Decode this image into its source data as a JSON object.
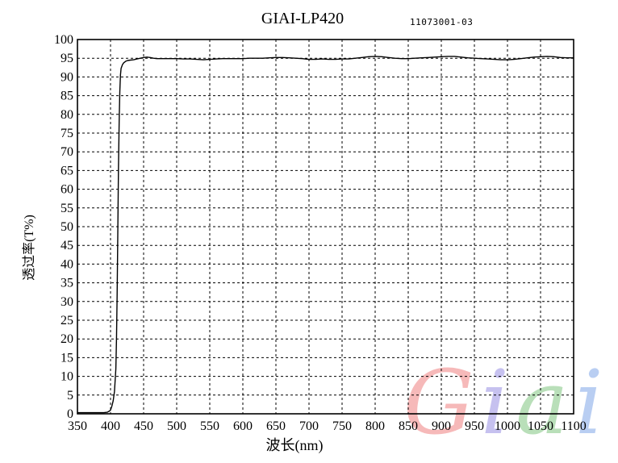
{
  "header": {
    "title": "GIAI-LP420",
    "serial": "11073001-03"
  },
  "axes": {
    "x_label": "波长(nm)",
    "y_label": "透过率(T%)"
  },
  "watermark": {
    "text": "Giai",
    "letters": [
      {
        "char": "G",
        "color": "#f5a8a8"
      },
      {
        "char": "i",
        "color": "#b8b2ec"
      },
      {
        "char": "a",
        "color": "#a8d8a8"
      },
      {
        "char": "i",
        "color": "#a8c2f0"
      }
    ]
  },
  "chart_data": {
    "type": "line",
    "title": "GIAI-LP420",
    "subtitle": "11073001-03",
    "xlabel": "波长(nm)",
    "ylabel": "透过率(T%)",
    "xlim": [
      350,
      1100
    ],
    "ylim": [
      0,
      100
    ],
    "x_ticks": [
      350,
      400,
      450,
      500,
      550,
      600,
      650,
      700,
      750,
      800,
      850,
      900,
      950,
      1000,
      1050,
      1100
    ],
    "y_ticks": [
      0,
      5,
      10,
      15,
      20,
      25,
      30,
      35,
      40,
      45,
      50,
      55,
      60,
      65,
      70,
      75,
      80,
      85,
      90,
      95,
      100
    ],
    "grid": "dashed",
    "legend": "none",
    "line_color": "#000000",
    "series": [
      {
        "name": "transmission",
        "points": [
          [
            350,
            0.3
          ],
          [
            355,
            0.3
          ],
          [
            360,
            0.3
          ],
          [
            365,
            0.3
          ],
          [
            370,
            0.3
          ],
          [
            375,
            0.3
          ],
          [
            380,
            0.3
          ],
          [
            385,
            0.3
          ],
          [
            390,
            0.3
          ],
          [
            395,
            0.4
          ],
          [
            398,
            0.7
          ],
          [
            400,
            1.0
          ],
          [
            402,
            2.0
          ],
          [
            404,
            3.5
          ],
          [
            406,
            6.0
          ],
          [
            408,
            12.0
          ],
          [
            409,
            20.0
          ],
          [
            410,
            32.0
          ],
          [
            411,
            48.0
          ],
          [
            412,
            65.0
          ],
          [
            413,
            78.0
          ],
          [
            414,
            86.0
          ],
          [
            415,
            90.5
          ],
          [
            416,
            92.3
          ],
          [
            418,
            93.3
          ],
          [
            420,
            93.8
          ],
          [
            423,
            94.2
          ],
          [
            426,
            94.4
          ],
          [
            430,
            94.5
          ],
          [
            435,
            94.6
          ],
          [
            440,
            94.8
          ],
          [
            445,
            95.0
          ],
          [
            450,
            95.2
          ],
          [
            455,
            95.3
          ],
          [
            460,
            95.2
          ],
          [
            465,
            95.0
          ],
          [
            470,
            94.9
          ],
          [
            480,
            94.9
          ],
          [
            490,
            94.9
          ],
          [
            500,
            94.9
          ],
          [
            510,
            94.8
          ],
          [
            520,
            94.8
          ],
          [
            530,
            94.7
          ],
          [
            540,
            94.6
          ],
          [
            550,
            94.7
          ],
          [
            560,
            94.8
          ],
          [
            570,
            94.9
          ],
          [
            580,
            94.9
          ],
          [
            590,
            94.9
          ],
          [
            600,
            94.9
          ],
          [
            610,
            95.0
          ],
          [
            620,
            95.0
          ],
          [
            630,
            95.0
          ],
          [
            640,
            95.1
          ],
          [
            650,
            95.2
          ],
          [
            660,
            95.2
          ],
          [
            670,
            95.1
          ],
          [
            680,
            95.0
          ],
          [
            690,
            94.9
          ],
          [
            700,
            94.7
          ],
          [
            710,
            94.7
          ],
          [
            720,
            94.8
          ],
          [
            730,
            94.7
          ],
          [
            740,
            94.7
          ],
          [
            750,
            94.8
          ],
          [
            760,
            94.8
          ],
          [
            770,
            95.0
          ],
          [
            780,
            95.2
          ],
          [
            790,
            95.4
          ],
          [
            800,
            95.5
          ],
          [
            810,
            95.4
          ],
          [
            820,
            95.2
          ],
          [
            830,
            95.0
          ],
          [
            840,
            94.9
          ],
          [
            850,
            94.9
          ],
          [
            860,
            95.0
          ],
          [
            870,
            95.1
          ],
          [
            880,
            95.2
          ],
          [
            890,
            95.3
          ],
          [
            900,
            95.4
          ],
          [
            910,
            95.5
          ],
          [
            920,
            95.5
          ],
          [
            930,
            95.3
          ],
          [
            940,
            95.1
          ],
          [
            950,
            95.0
          ],
          [
            960,
            94.9
          ],
          [
            970,
            94.8
          ],
          [
            980,
            94.7
          ],
          [
            990,
            94.6
          ],
          [
            1000,
            94.6
          ],
          [
            1010,
            94.7
          ],
          [
            1020,
            94.9
          ],
          [
            1030,
            95.1
          ],
          [
            1040,
            95.3
          ],
          [
            1050,
            95.4
          ],
          [
            1060,
            95.5
          ],
          [
            1070,
            95.4
          ],
          [
            1080,
            95.2
          ],
          [
            1090,
            95.1
          ],
          [
            1100,
            95.1
          ]
        ]
      }
    ]
  }
}
